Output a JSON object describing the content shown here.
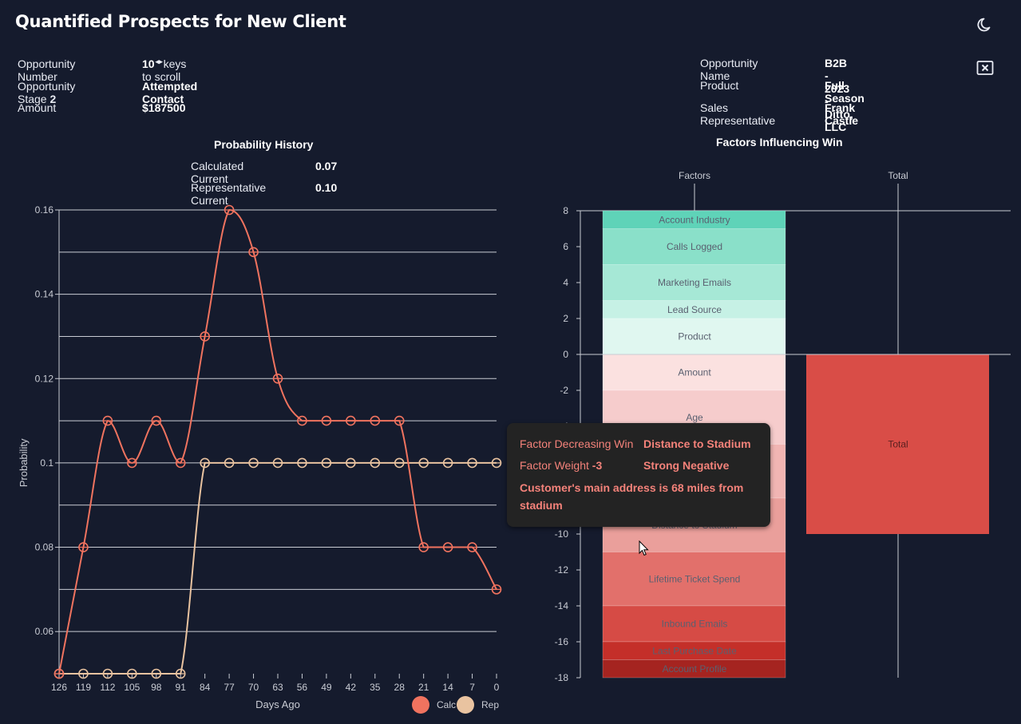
{
  "header": {
    "title": "Quantified Prospects for New Client"
  },
  "opportunity": {
    "number_label": "Opportunity Number",
    "number_value": "10",
    "scroll_hint": "keys to scroll",
    "stage_label": "Opportunity Stage",
    "stage_number": "2",
    "stage_value": "Attempted Contact",
    "amount_label": "Amount",
    "amount_value": "$187500",
    "name_label": "Opportunity Name",
    "name_value": "B2B - 2023 - Ditto, LLC",
    "product_label": "Product",
    "product_value": "Full Season",
    "rep_label": "Sales Representative",
    "rep_value": "Frank Castle"
  },
  "probability_history": {
    "title": "Probability History",
    "calc_label": "Calculated Current",
    "calc_value": "0.07",
    "rep_label": "Representative Current",
    "rep_value": "0.10"
  },
  "factors_panel": {
    "title": "Factors Influencing Win"
  },
  "tooltip": {
    "label1": "Factor Decreasing Win",
    "value1": "Distance to Stadium",
    "label2": "Factor Weight",
    "weight": "-3",
    "value2": "Strong Negative",
    "description": "Customer's main address is 68 miles from stadium"
  },
  "colors": {
    "calc": "#f0735f",
    "rep": "#e9c3a0",
    "background": "#151b2d"
  },
  "icons": {
    "theme": "moon-icon",
    "close": "close-box-icon"
  },
  "chart_data": [
    {
      "type": "line",
      "ylabel": "Probability",
      "xlabel": "Days Ago",
      "x": [
        126,
        119,
        112,
        105,
        98,
        91,
        84,
        77,
        70,
        63,
        56,
        49,
        42,
        35,
        28,
        21,
        14,
        7,
        0
      ],
      "x_ticks": [
        "126",
        "119",
        "112",
        "105",
        "98",
        "91",
        "84",
        "77",
        "70",
        "63",
        "56",
        "49",
        "42",
        "35",
        "28",
        "21",
        "14",
        "7",
        "0"
      ],
      "ylim": [
        0.05,
        0.16
      ],
      "y_ticks": [
        "0.06",
        "0.08",
        "0.1",
        "0.12",
        "0.14",
        "0.16"
      ],
      "grid": true,
      "legend_position": "bottom-right",
      "series": [
        {
          "name": "Calc",
          "color": "#f0735f",
          "values": [
            0.05,
            0.08,
            0.11,
            0.1,
            0.11,
            0.1,
            0.13,
            0.16,
            0.15,
            0.12,
            0.11,
            0.11,
            0.11,
            0.11,
            0.11,
            0.08,
            0.08,
            0.08,
            0.07
          ]
        },
        {
          "name": "Rep",
          "color": "#e9c3a0",
          "values": [
            0.05,
            0.05,
            0.05,
            0.05,
            0.05,
            0.05,
            0.1,
            0.1,
            0.1,
            0.1,
            0.1,
            0.1,
            0.1,
            0.1,
            0.1,
            0.1,
            0.1,
            0.1,
            0.1
          ]
        }
      ]
    },
    {
      "type": "bar",
      "categories": [
        "Factors",
        "Total"
      ],
      "ylim": [
        -18,
        8
      ],
      "y_ticks": [
        "8",
        "6",
        "4",
        "2",
        "0",
        "-2",
        "-4",
        "-6",
        "-8",
        "-10",
        "-12",
        "-14",
        "-16",
        "-18"
      ],
      "stacked_factors": [
        {
          "name": "Account Industry",
          "start": 8,
          "end": 7,
          "color": "#5fd3b8"
        },
        {
          "name": "Calls Logged",
          "start": 7,
          "end": 5,
          "color": "#8ae0c9"
        },
        {
          "name": "Marketing Emails",
          "start": 5,
          "end": 3,
          "color": "#a6e8d6"
        },
        {
          "name": "Lead Source",
          "start": 3,
          "end": 2,
          "color": "#c6f1e5"
        },
        {
          "name": "Product",
          "start": 2,
          "end": 0,
          "color": "#e0f7f0"
        },
        {
          "name": "Amount",
          "start": 0,
          "end": -2,
          "color": "#fbe1e0"
        },
        {
          "name": "Age",
          "start": -2,
          "end": -5,
          "color": "#f6cccc"
        },
        {
          "name": "",
          "start": -5,
          "end": -8,
          "color": "#f1b5b3"
        },
        {
          "name": "Distance to Stadium",
          "start": -8,
          "end": -11,
          "color": "#ea9f9b"
        },
        {
          "name": "Lifetime Ticket Spend",
          "start": -11,
          "end": -14,
          "color": "#e2706b"
        },
        {
          "name": "Inbound Emails",
          "start": -14,
          "end": -16,
          "color": "#d64b45"
        },
        {
          "name": "Last Purchase Date",
          "start": -16,
          "end": -17,
          "color": "#c42f29"
        },
        {
          "name": "Account Profile",
          "start": -17,
          "end": -18,
          "color": "#a52420"
        }
      ],
      "total": {
        "name": "Total",
        "start": 0,
        "end": -10,
        "color": "#d94d47"
      }
    }
  ]
}
